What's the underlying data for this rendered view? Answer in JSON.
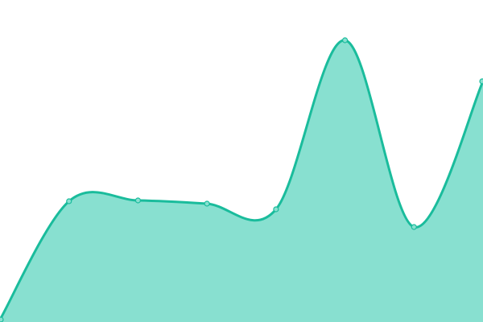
{
  "chart_data": {
    "type": "area",
    "title": "",
    "xlabel": "",
    "ylabel": "",
    "x": [
      0,
      1,
      2,
      3,
      4,
      5,
      6,
      7
    ],
    "series": [
      {
        "values": [
          3,
          150,
          151,
          147,
          140,
          350,
          118,
          299
        ]
      }
    ],
    "ylim": [
      0,
      400
    ],
    "grid": false,
    "legend": "none",
    "colors": {
      "fill": "#88e0d0",
      "stroke": "#1abc9c",
      "point": "#88e0d0"
    }
  }
}
